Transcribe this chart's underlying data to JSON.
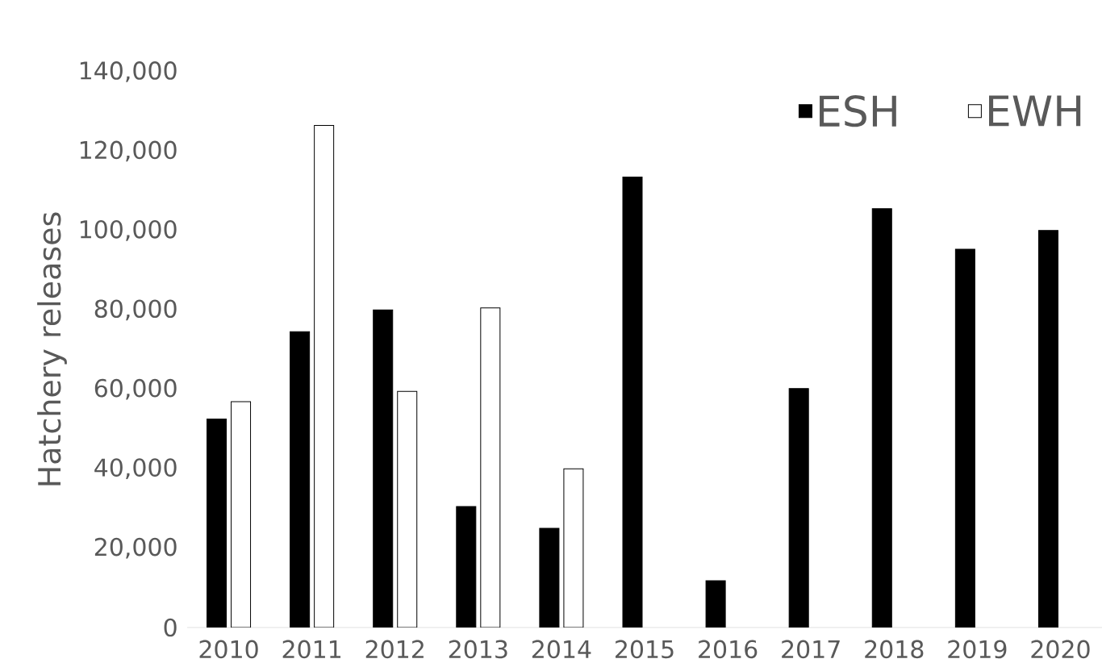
{
  "chart_data": {
    "type": "bar",
    "ylabel": "Hatchery releases",
    "categories": [
      "2010",
      "2011",
      "2012",
      "2013",
      "2014",
      "2015",
      "2016",
      "2017",
      "2018",
      "2019",
      "2020"
    ],
    "series": [
      {
        "name": "ESH",
        "color": "#000000",
        "values": [
          52500,
          74500,
          80000,
          30500,
          25000,
          113500,
          11800,
          60200,
          105500,
          95300,
          100000
        ]
      },
      {
        "name": "EWH",
        "color": "#ffffff",
        "values": [
          56900,
          126500,
          59500,
          80500,
          40000,
          null,
          null,
          null,
          null,
          null,
          null
        ]
      }
    ],
    "ylim": [
      0,
      140000
    ],
    "yticks": [
      {
        "value": 0,
        "label": "0"
      },
      {
        "value": 20000,
        "label": "20,000"
      },
      {
        "value": 40000,
        "label": "40,000"
      },
      {
        "value": 60000,
        "label": "60,000"
      },
      {
        "value": 80000,
        "label": "80,000"
      },
      {
        "value": 100000,
        "label": "100,000"
      },
      {
        "value": 120000,
        "label": "120,000"
      },
      {
        "value": 140000,
        "label": "140,000"
      }
    ],
    "grid": false,
    "legend": "top right"
  }
}
